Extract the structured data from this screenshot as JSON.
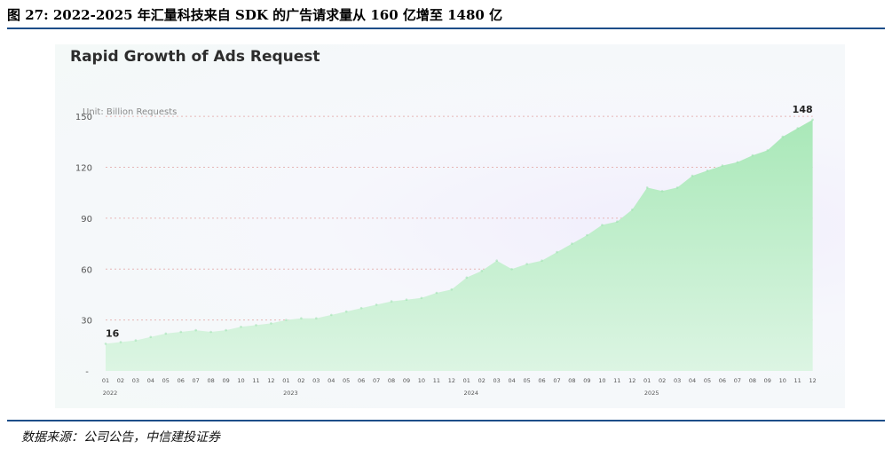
{
  "figure_title": "图 27: 2022-2025 年汇量科技来自 SDK 的广告请求量从 160 亿增至 1480 亿",
  "source_note": "数据来源：公司公告，中信建投证券",
  "colors": {
    "area_top": "#a9e8b8",
    "area_bottom": "#d8f4df",
    "rule": "#1d4e89",
    "grid": "#e6b6b6"
  },
  "chart_data": {
    "type": "area",
    "title": "Rapid Growth of Ads Request",
    "unit_label": "Unit: Billion Requests",
    "ylim": [
      0,
      160
    ],
    "yticks": [
      30,
      60,
      90,
      120,
      150
    ],
    "y_zero_label": "-",
    "x_month_labels": [
      "01",
      "02",
      "03",
      "04",
      "05",
      "06",
      "07",
      "08",
      "09",
      "10",
      "11",
      "12",
      "01",
      "02",
      "03",
      "04",
      "05",
      "06",
      "07",
      "08",
      "09",
      "10",
      "11",
      "12",
      "01",
      "02",
      "03",
      "04",
      "05",
      "06",
      "07",
      "08",
      "09",
      "10",
      "11",
      "12",
      "01",
      "02",
      "03",
      "04",
      "05",
      "06",
      "07",
      "08",
      "09",
      "10",
      "11",
      "12"
    ],
    "x_year_labels": [
      {
        "label": "2022",
        "index": 0
      },
      {
        "label": "2023",
        "index": 12
      },
      {
        "label": "2024",
        "index": 24
      },
      {
        "label": "2025",
        "index": 36
      }
    ],
    "values": [
      16,
      17,
      18,
      20,
      22,
      23,
      24,
      23,
      24,
      26,
      27,
      28,
      30,
      31,
      31,
      33,
      35,
      37,
      39,
      41,
      42,
      43,
      46,
      48,
      55,
      59,
      65,
      60,
      63,
      65,
      70,
      75,
      80,
      86,
      88,
      95,
      108,
      106,
      108,
      115,
      118,
      121,
      123,
      127,
      130,
      138,
      143,
      148
    ],
    "data_labels": [
      {
        "index": 0,
        "text": "16"
      },
      {
        "index": 47,
        "text": "148"
      }
    ],
    "grid": true
  }
}
